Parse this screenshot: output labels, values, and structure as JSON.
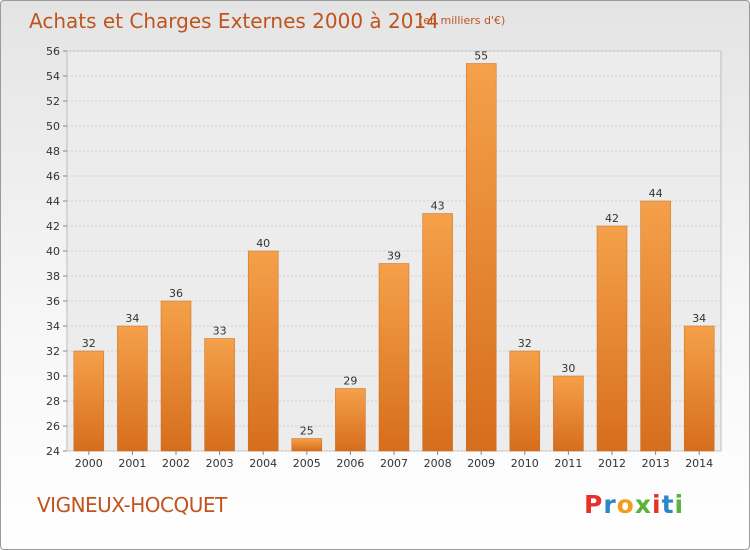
{
  "page": {
    "title": "Achats et Charges Externes 2000 à 2014",
    "unit": "(en milliers d'€)",
    "commune": "VIGNEUX-HOCQUET",
    "logo": [
      "P",
      "r",
      "o",
      "x",
      "i",
      "t",
      "i"
    ],
    "logo_colors": [
      "#e5322b",
      "#2c86c8",
      "#f39c1f",
      "#5bb33b",
      "#e5322b",
      "#2c86c8",
      "#5bb33b"
    ]
  },
  "chart_data": {
    "type": "bar",
    "title": "Achats et Charges Externes 2000 à 2014",
    "subtitle": "(en milliers d'€)",
    "xlabel": "",
    "ylabel": "",
    "categories": [
      "2000",
      "2001",
      "2002",
      "2003",
      "2004",
      "2005",
      "2006",
      "2007",
      "2008",
      "2009",
      "2010",
      "2011",
      "2012",
      "2013",
      "2014"
    ],
    "values": [
      32,
      34,
      36,
      33,
      40,
      25,
      29,
      39,
      43,
      55,
      32,
      30,
      42,
      44,
      34
    ],
    "ylim": [
      24,
      56
    ],
    "yticks": [
      24,
      26,
      28,
      30,
      32,
      34,
      36,
      38,
      40,
      42,
      44,
      46,
      48,
      50,
      52,
      54,
      56
    ],
    "grid": true,
    "bar_color": "#f0923a",
    "bar_color_dark": "#d66e1c"
  }
}
